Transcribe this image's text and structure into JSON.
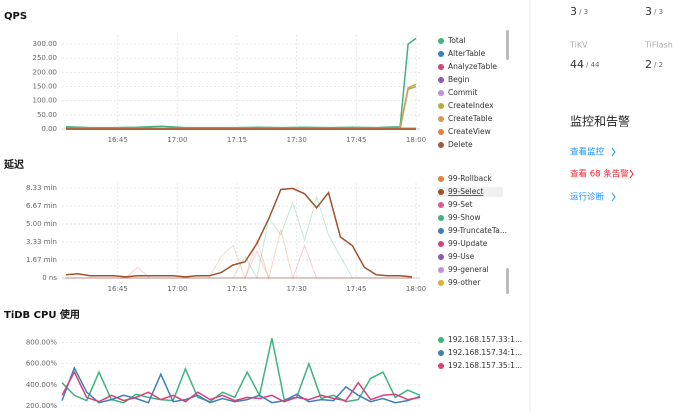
{
  "chart_data": [
    {
      "type": "line",
      "title": "QPS",
      "x": [
        "16:32",
        "16:38",
        "16:44",
        "16:50",
        "16:56",
        "17:02",
        "17:08",
        "17:14",
        "17:20",
        "17:26",
        "17:32",
        "17:38",
        "17:44",
        "17:50",
        "17:56",
        "17:58",
        "18:00"
      ],
      "xlim": [
        "16:31",
        "18:01"
      ],
      "xticks": [
        "16:45",
        "17:00",
        "17:15",
        "17:30",
        "17:45",
        "18:00"
      ],
      "ylim": [
        0,
        332
      ],
      "yticks": [
        {
          "value": 0,
          "label": "0.00"
        },
        {
          "value": 50,
          "label": "50.00"
        },
        {
          "value": 100,
          "label": "100.00"
        },
        {
          "value": 150,
          "label": "150.00"
        },
        {
          "value": 200,
          "label": "200.00"
        },
        {
          "value": 250,
          "label": "250.00"
        },
        {
          "value": 300,
          "label": "300.00"
        }
      ],
      "grid": true,
      "series": [
        {
          "name": "Total",
          "color": "#3fb27f",
          "values": [
            8,
            5,
            5,
            6,
            10,
            5,
            5,
            5,
            6,
            5,
            6,
            5,
            6,
            5,
            8,
            300,
            320
          ]
        },
        {
          "name": "AlterTable",
          "color": "#3f7fb8",
          "values": [
            0,
            0,
            0,
            0,
            0,
            0,
            0,
            0,
            0,
            0,
            0,
            0,
            0,
            0,
            0,
            0,
            0
          ]
        },
        {
          "name": "AnalyzeTable",
          "color": "#d6417a",
          "values": [
            0,
            0,
            0,
            0,
            0,
            0,
            0,
            0,
            0,
            0,
            0,
            0,
            0,
            0,
            0,
            0,
            0
          ]
        },
        {
          "name": "Begin",
          "color": "#8b5ab1",
          "values": [
            0,
            0,
            0,
            0,
            0,
            0,
            0,
            0,
            0,
            0,
            0,
            0,
            0,
            0,
            0,
            0,
            0
          ]
        },
        {
          "name": "Commit",
          "color": "#c28fd8",
          "values": [
            0,
            0,
            0,
            0,
            0,
            0,
            0,
            0,
            0,
            0,
            0,
            0,
            0,
            0,
            0,
            0,
            0
          ]
        },
        {
          "name": "CreateIndex",
          "color": "#b8ad3a",
          "values": [
            2,
            2,
            2,
            2,
            3,
            2,
            2,
            2,
            2,
            2,
            2,
            2,
            2,
            2,
            3,
            145,
            158
          ]
        },
        {
          "name": "CreateTable",
          "color": "#d39a5c",
          "values": [
            1,
            1,
            1,
            1,
            1,
            1,
            1,
            1,
            1,
            1,
            1,
            1,
            1,
            1,
            1,
            140,
            150
          ]
        },
        {
          "name": "CreateView",
          "color": "#e8803a",
          "values": [
            3,
            3,
            3,
            3,
            3,
            3,
            3,
            3,
            3,
            3,
            3,
            3,
            3,
            3,
            3,
            3,
            3
          ]
        },
        {
          "name": "Delete",
          "color": "#a05a3c",
          "values": [
            0,
            0,
            0,
            0,
            0,
            0,
            0,
            0,
            0,
            0,
            0,
            0,
            0,
            0,
            0,
            0,
            0
          ]
        }
      ]
    },
    {
      "type": "line",
      "title": "延迟",
      "highlight": "99-Select",
      "x": [
        "16:32",
        "16:35",
        "16:38",
        "16:41",
        "16:44",
        "16:47",
        "16:50",
        "16:53",
        "16:56",
        "16:59",
        "17:02",
        "17:05",
        "17:08",
        "17:11",
        "17:14",
        "17:17",
        "17:20",
        "17:23",
        "17:26",
        "17:29",
        "17:32",
        "17:35",
        "17:38",
        "17:41",
        "17:44",
        "17:47",
        "17:50",
        "17:53",
        "17:56",
        "17:59"
      ],
      "xlim": [
        "16:31",
        "18:01"
      ],
      "xticks": [
        "16:45",
        "17:00",
        "17:15",
        "17:30",
        "17:45",
        "18:00"
      ],
      "ylim": [
        0,
        8.8
      ],
      "yticks": [
        {
          "value": 0,
          "label": "0 ns"
        },
        {
          "value": 1.67,
          "label": "1.67 min"
        },
        {
          "value": 3.33,
          "label": "3.33 min"
        },
        {
          "value": 5,
          "label": "5.00 min"
        },
        {
          "value": 6.67,
          "label": "6.67 min"
        },
        {
          "value": 8.33,
          "label": "8.33 min"
        }
      ],
      "grid": true,
      "series": [
        {
          "name": "99-Rollback",
          "color": "#e8803a",
          "values": [
            0,
            0,
            0,
            0,
            0,
            0,
            0,
            0,
            0,
            0,
            0,
            0,
            0,
            2,
            3,
            0,
            3.5,
            0,
            4.5,
            0,
            0,
            0,
            0,
            0,
            0,
            0,
            0,
            0,
            0,
            0
          ]
        },
        {
          "name": "99-Select",
          "color": "#a0522d",
          "values": [
            0.3,
            0.4,
            0.2,
            0.2,
            0.2,
            0.1,
            0.2,
            0.2,
            0.2,
            0.2,
            0.1,
            0.2,
            0.2,
            0.5,
            1.2,
            1.5,
            3.2,
            5.5,
            8.2,
            8.3,
            7.8,
            6.5,
            7.9,
            3.8,
            3,
            1,
            0.3,
            0.2,
            0.2,
            0.1
          ]
        },
        {
          "name": "99-Set",
          "color": "#e05a8a",
          "values": [
            0,
            0,
            0,
            0,
            0,
            0,
            1,
            0,
            0,
            0,
            0,
            0,
            0,
            0,
            0,
            0,
            2.5,
            0,
            0,
            0,
            3,
            0,
            0,
            0,
            0,
            0,
            0,
            0,
            0,
            0
          ]
        },
        {
          "name": "99-Show",
          "color": "#3fb27f",
          "values": [
            0,
            0,
            0,
            0,
            0,
            0,
            0,
            0,
            0,
            0,
            0,
            0,
            0,
            0,
            0,
            2,
            0,
            5.5,
            4,
            7,
            3.5,
            7.5,
            4,
            2,
            0,
            0,
            0,
            0,
            0,
            0
          ]
        },
        {
          "name": "99-TruncateTa...",
          "color": "#3f7fb8",
          "values": [
            0,
            0,
            0,
            0,
            0,
            0,
            0,
            0,
            0,
            0,
            0,
            0,
            0,
            0,
            0,
            0,
            0,
            0,
            0,
            0,
            0,
            0,
            0,
            0,
            0,
            0,
            0,
            0,
            0,
            0
          ]
        },
        {
          "name": "99-Update",
          "color": "#d6417a",
          "values": [
            0,
            0,
            0,
            0,
            0,
            0,
            0,
            0,
            0,
            0,
            0,
            0,
            0,
            0,
            0,
            0,
            0,
            0,
            0,
            0,
            0,
            0,
            0,
            0,
            0,
            0,
            0,
            0,
            0,
            0
          ]
        },
        {
          "name": "99-Use",
          "color": "#8b5ab1",
          "values": [
            0,
            0,
            0,
            0,
            0,
            0,
            0,
            0,
            0,
            0,
            0,
            0,
            0,
            0,
            0,
            0,
            0,
            0,
            0,
            0,
            0,
            0,
            0,
            0,
            0,
            0,
            0,
            0,
            0,
            0
          ]
        },
        {
          "name": "99-general",
          "color": "#c28fd8",
          "values": [
            0,
            0,
            0,
            0,
            0,
            0,
            0,
            0,
            0,
            0,
            0,
            0,
            0,
            0,
            0,
            0,
            0,
            0,
            0,
            0,
            0,
            0,
            0,
            0,
            0,
            0,
            0,
            0,
            0,
            0
          ]
        },
        {
          "name": "99-other",
          "color": "#e0b030",
          "values": [
            0,
            0,
            0,
            0,
            0,
            0,
            0,
            0,
            0,
            0,
            0,
            0,
            0,
            0,
            0,
            0,
            0,
            0,
            0,
            0,
            0,
            0,
            0,
            0,
            0,
            0,
            0,
            0,
            0,
            0
          ]
        }
      ]
    },
    {
      "type": "line",
      "title": "TiDB CPU 使用",
      "ylim": [
        0,
        900
      ],
      "yticks": [
        {
          "value": 200,
          "label": "200.00%"
        },
        {
          "value": 400,
          "label": "400.00%"
        },
        {
          "value": 600,
          "label": "600.00%"
        },
        {
          "value": 800,
          "label": "800.00%"
        }
      ],
      "grid": true,
      "series": [
        {
          "name": "192.168.157.33:1...",
          "color": "#3fb27f",
          "values": [
            420,
            300,
            250,
            520,
            260,
            230,
            310,
            280,
            260,
            250,
            550,
            280,
            240,
            330,
            280,
            520,
            300,
            840,
            260,
            280,
            600,
            270,
            300,
            240,
            260,
            460,
            520,
            280,
            350,
            300
          ]
        },
        {
          "name": "192.168.157.34:1...",
          "color": "#3f7fb8",
          "values": [
            250,
            560,
            330,
            230,
            260,
            300,
            270,
            230,
            500,
            240,
            260,
            300,
            230,
            270,
            240,
            260,
            300,
            230,
            250,
            310,
            240,
            260,
            250,
            380,
            300,
            240,
            270,
            230,
            250,
            290
          ]
        },
        {
          "name": "192.168.157.35:1...",
          "color": "#d6417a",
          "values": [
            300,
            520,
            280,
            240,
            300,
            250,
            280,
            330,
            260,
            300,
            240,
            330,
            260,
            300,
            250,
            280,
            270,
            300,
            240,
            280,
            260,
            300,
            270,
            250,
            420,
            260,
            300,
            310,
            260,
            280
          ]
        }
      ]
    }
  ],
  "sidebar": {
    "stats": [
      {
        "value": "3",
        "total": "/ 3"
      },
      {
        "value": "3",
        "total": "/ 3"
      },
      {
        "label": "TiKV",
        "value": "44",
        "total": "/ 44"
      },
      {
        "label": "TiFlash",
        "value": "2",
        "total": "/ 2"
      }
    ],
    "section_title": "监控和告警",
    "links": [
      "查看监控",
      "查看 68 条告警",
      "运行诊断"
    ]
  }
}
